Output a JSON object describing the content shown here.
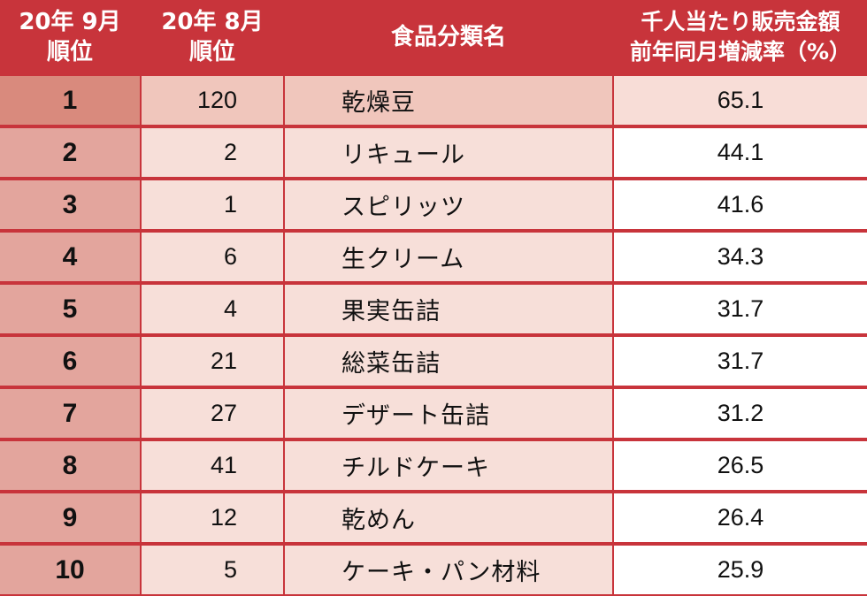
{
  "header": {
    "col_rank_cur": "20年 9月\n順位",
    "col_rank_prev": "20年 8月\n順位",
    "col_name": "食品分類名",
    "col_value": "千人当たり販売金額\n前年同月増減率（%）"
  },
  "rows": [
    {
      "rank": "1",
      "prev": "120",
      "name": "乾燥豆",
      "value": "65.1"
    },
    {
      "rank": "2",
      "prev": "2",
      "name": "リキュール",
      "value": "44.1"
    },
    {
      "rank": "3",
      "prev": "1",
      "name": "スピリッツ",
      "value": "41.6"
    },
    {
      "rank": "4",
      "prev": "6",
      "name": "生クリーム",
      "value": "34.3"
    },
    {
      "rank": "5",
      "prev": "4",
      "name": "果実缶詰",
      "value": "31.7"
    },
    {
      "rank": "6",
      "prev": "21",
      "name": "総菜缶詰",
      "value": "31.7"
    },
    {
      "rank": "7",
      "prev": "27",
      "name": "デザート缶詰",
      "value": "31.2"
    },
    {
      "rank": "8",
      "prev": "41",
      "name": "チルドケーキ",
      "value": "26.5"
    },
    {
      "rank": "9",
      "prev": "12",
      "name": "乾めん",
      "value": "26.4"
    },
    {
      "rank": "10",
      "prev": "5",
      "name": "ケーキ・パン材料",
      "value": "25.9"
    }
  ],
  "colors": {
    "header_bg": "#c8343b",
    "header_text": "#ffffff",
    "rank_bg": "#e3a59d",
    "row_bg": "#f7dfd9",
    "highlight_row_bg": "#f0c6bc"
  }
}
